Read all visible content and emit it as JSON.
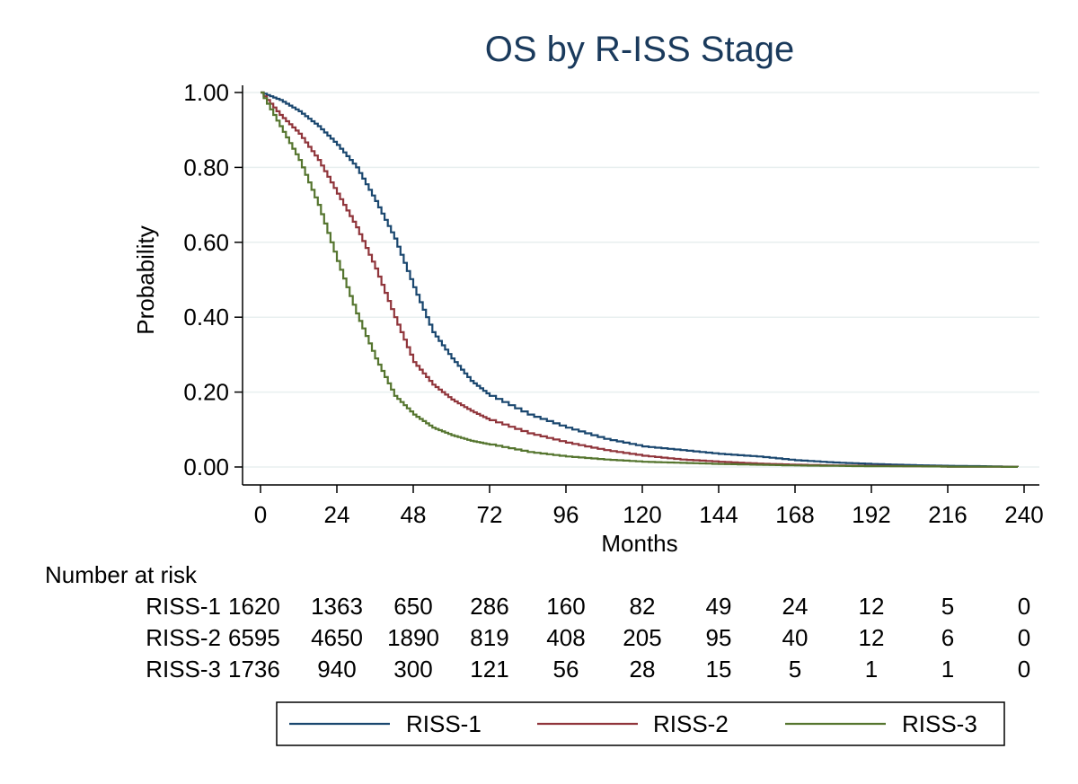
{
  "chart_data": {
    "type": "line",
    "title": "OS by R-ISS Stage",
    "xlabel": "Months",
    "ylabel": "Probability",
    "xlim": [
      0,
      240
    ],
    "ylim": [
      0,
      1
    ],
    "x_ticks": [
      "0",
      "24",
      "48",
      "72",
      "96",
      "120",
      "144",
      "168",
      "192",
      "216",
      "240"
    ],
    "y_ticks": [
      "0.00",
      "0.20",
      "0.40",
      "0.60",
      "0.80",
      "1.00"
    ],
    "grid": "horizontal",
    "legend_position": "bottom",
    "series": [
      {
        "name": "RISS-1",
        "color": "#1a476f",
        "x": [
          0,
          6,
          12,
          18,
          24,
          30,
          36,
          42,
          48,
          54,
          60,
          66,
          72,
          84,
          96,
          108,
          120,
          132,
          144,
          156,
          168,
          180,
          192,
          204,
          216,
          228,
          238
        ],
        "y": [
          1.0,
          0.98,
          0.95,
          0.91,
          0.86,
          0.8,
          0.71,
          0.61,
          0.48,
          0.36,
          0.29,
          0.23,
          0.19,
          0.14,
          0.105,
          0.075,
          0.055,
          0.045,
          0.035,
          0.028,
          0.018,
          0.012,
          0.008,
          0.005,
          0.003,
          0.002,
          0.0
        ]
      },
      {
        "name": "RISS-2",
        "color": "#90353b",
        "x": [
          0,
          6,
          12,
          18,
          24,
          30,
          36,
          42,
          48,
          54,
          60,
          66,
          72,
          84,
          96,
          108,
          120,
          132,
          144,
          156,
          168,
          180,
          192,
          204,
          216,
          228,
          238
        ],
        "y": [
          1.0,
          0.94,
          0.89,
          0.82,
          0.73,
          0.64,
          0.53,
          0.4,
          0.28,
          0.22,
          0.18,
          0.15,
          0.125,
          0.09,
          0.065,
          0.045,
          0.03,
          0.02,
          0.014,
          0.009,
          0.006,
          0.004,
          0.003,
          0.002,
          0.001,
          0.001,
          0.0
        ]
      },
      {
        "name": "RISS-3",
        "color": "#55752f",
        "x": [
          0,
          6,
          12,
          18,
          24,
          30,
          36,
          42,
          48,
          54,
          60,
          66,
          72,
          84,
          96,
          108,
          120,
          132,
          144,
          156,
          168,
          180,
          192,
          204,
          216,
          228,
          238
        ],
        "y": [
          1.0,
          0.91,
          0.82,
          0.7,
          0.55,
          0.41,
          0.29,
          0.19,
          0.14,
          0.105,
          0.085,
          0.07,
          0.06,
          0.04,
          0.028,
          0.02,
          0.014,
          0.011,
          0.008,
          0.006,
          0.004,
          0.003,
          0.002,
          0.002,
          0.001,
          0.001,
          0.0
        ]
      }
    ],
    "risk_table": {
      "heading": "Number at risk",
      "rows": [
        {
          "label": "RISS-1",
          "values": [
            "1620",
            "1363",
            "650",
            "286",
            "160",
            "82",
            "49",
            "24",
            "12",
            "5",
            "0"
          ]
        },
        {
          "label": "RISS-2",
          "values": [
            "6595",
            "4650",
            "1890",
            "819",
            "408",
            "205",
            "95",
            "40",
            "12",
            "6",
            "0"
          ]
        },
        {
          "label": "RISS-3",
          "values": [
            "1736",
            "940",
            "300",
            "121",
            "56",
            "28",
            "15",
            "5",
            "1",
            "1",
            "0"
          ]
        }
      ]
    }
  }
}
